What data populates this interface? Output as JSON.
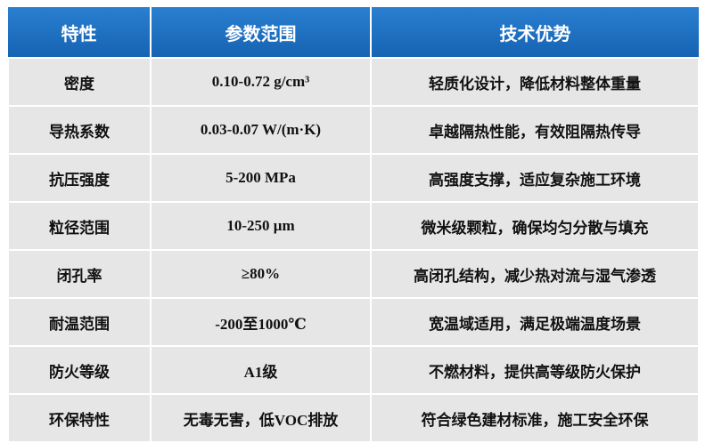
{
  "table": {
    "header": [
      "特性",
      "参数范围",
      "技术优势"
    ],
    "rows": [
      [
        "密度",
        "0.10-0.72 g/cm³",
        "轻质化设计，降低材料整体重量"
      ],
      [
        "导热系数",
        "0.03-0.07 W/(m·K)",
        "卓越隔热性能，有效阻隔热传导"
      ],
      [
        "抗压强度",
        "5-200 MPa",
        "高强度支撑，适应复杂施工环境"
      ],
      [
        "粒径范围",
        "10-250 μm",
        "微米级颗粒，确保均匀分散与填充"
      ],
      [
        "闭孔率",
        "≥80%",
        "高闭孔结构，减少热对流与湿气渗透"
      ],
      [
        "耐温范围",
        "-200至1000℃",
        "宽温域适用，满足极端温度场景"
      ],
      [
        "防火等级",
        "A1级",
        "不燃材料，提供高等级防火保护"
      ],
      [
        "环保特性",
        "无毒无害，低VOC排放",
        "符合绿色建材标准，施工安全环保"
      ]
    ]
  }
}
